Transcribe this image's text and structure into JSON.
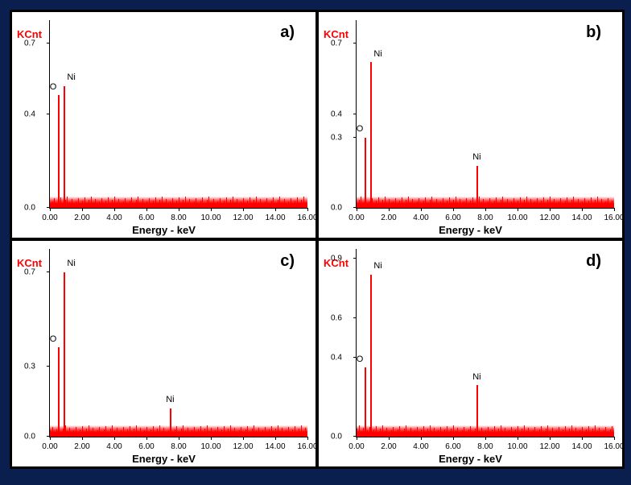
{
  "figure": {
    "background_color": "#0a1f4d",
    "panel_bg": "#ffffff",
    "spectrum_color": "#ff0000",
    "axis_color": "#000000",
    "ylabel": "KCnt",
    "ylabel_color": "#ff0000",
    "xlabel": "Energy - keV",
    "label_fontsize": 13,
    "panel_label_fontsize": 20,
    "xlim": [
      0,
      16
    ],
    "xtick_step": 2.0,
    "panels": [
      {
        "id": "a",
        "label": "a)",
        "ylim": [
          0,
          0.8
        ],
        "yticks": [
          0.0,
          0.4,
          0.7
        ],
        "peaks": [
          {
            "energy": 0.52,
            "height": 0.48,
            "label": "O",
            "label_side": "left"
          },
          {
            "energy": 0.85,
            "height": 0.52,
            "label": "Ni",
            "label_side": "right"
          }
        ]
      },
      {
        "id": "b",
        "label": "b)",
        "ylim": [
          0,
          0.8
        ],
        "yticks": [
          0.0,
          0.3,
          0.4,
          0.7
        ],
        "peaks": [
          {
            "energy": 0.52,
            "height": 0.3,
            "label": "O",
            "label_side": "left"
          },
          {
            "energy": 0.85,
            "height": 0.62,
            "label": "Ni",
            "label_side": "right"
          },
          {
            "energy": 7.47,
            "height": 0.18,
            "label": "Ni",
            "label_side": "center"
          }
        ]
      },
      {
        "id": "c",
        "label": "c)",
        "ylim": [
          0,
          0.8
        ],
        "yticks": [
          0.0,
          0.3,
          0.7
        ],
        "peaks": [
          {
            "energy": 0.52,
            "height": 0.38,
            "label": "O",
            "label_side": "left"
          },
          {
            "energy": 0.85,
            "height": 0.7,
            "label": "Ni",
            "label_side": "right"
          },
          {
            "energy": 7.47,
            "height": 0.12,
            "label": "Ni",
            "label_side": "center"
          }
        ]
      },
      {
        "id": "d",
        "label": "d)",
        "ylim": [
          0,
          0.95
        ],
        "yticks": [
          0.0,
          0.4,
          0.6,
          0.9
        ],
        "peaks": [
          {
            "energy": 0.52,
            "height": 0.35,
            "label": "O",
            "label_side": "left"
          },
          {
            "energy": 0.85,
            "height": 0.82,
            "label": "Ni",
            "label_side": "right"
          },
          {
            "energy": 7.47,
            "height": 0.26,
            "label": "Ni",
            "label_side": "center"
          }
        ]
      }
    ]
  }
}
